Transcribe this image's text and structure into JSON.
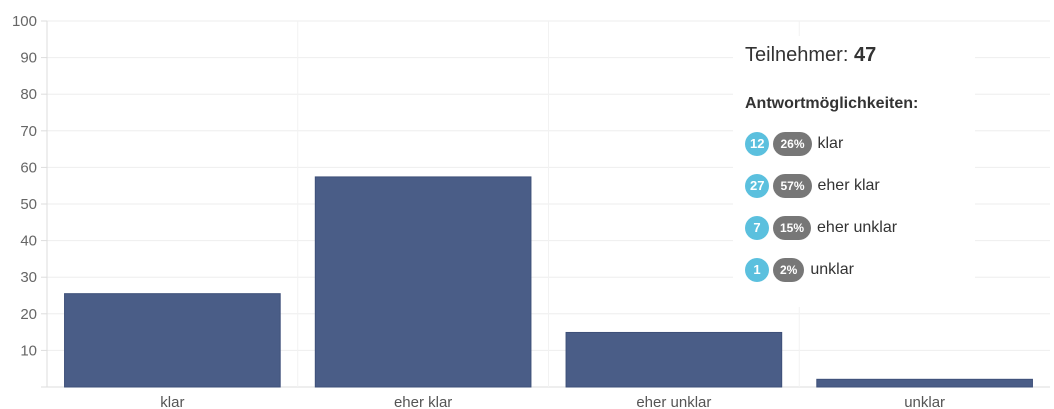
{
  "chart_data": {
    "type": "bar",
    "categories": [
      "klar",
      "eher klar",
      "eher unklar",
      "unklar"
    ],
    "values": [
      25.5,
      57.4,
      14.9,
      2.1
    ],
    "ylim": [
      0,
      100
    ],
    "yticks": [
      10,
      20,
      30,
      40,
      50,
      60,
      70,
      80,
      90,
      100
    ],
    "grid": true,
    "bar_color": "#4a5d87"
  },
  "legend": {
    "participants_label": "Teilnehmer:",
    "participants_count": "47",
    "options_title": "Antwortmöglichkeiten:",
    "options": [
      {
        "count": "12",
        "percent": "26%",
        "label": "klar"
      },
      {
        "count": "27",
        "percent": "57%",
        "label": "eher klar"
      },
      {
        "count": "7",
        "percent": "15%",
        "label": "eher unklar"
      },
      {
        "count": "1",
        "percent": "2%",
        "label": "unklar"
      }
    ],
    "count_color": "#5bc0de",
    "percent_color": "#777777"
  }
}
